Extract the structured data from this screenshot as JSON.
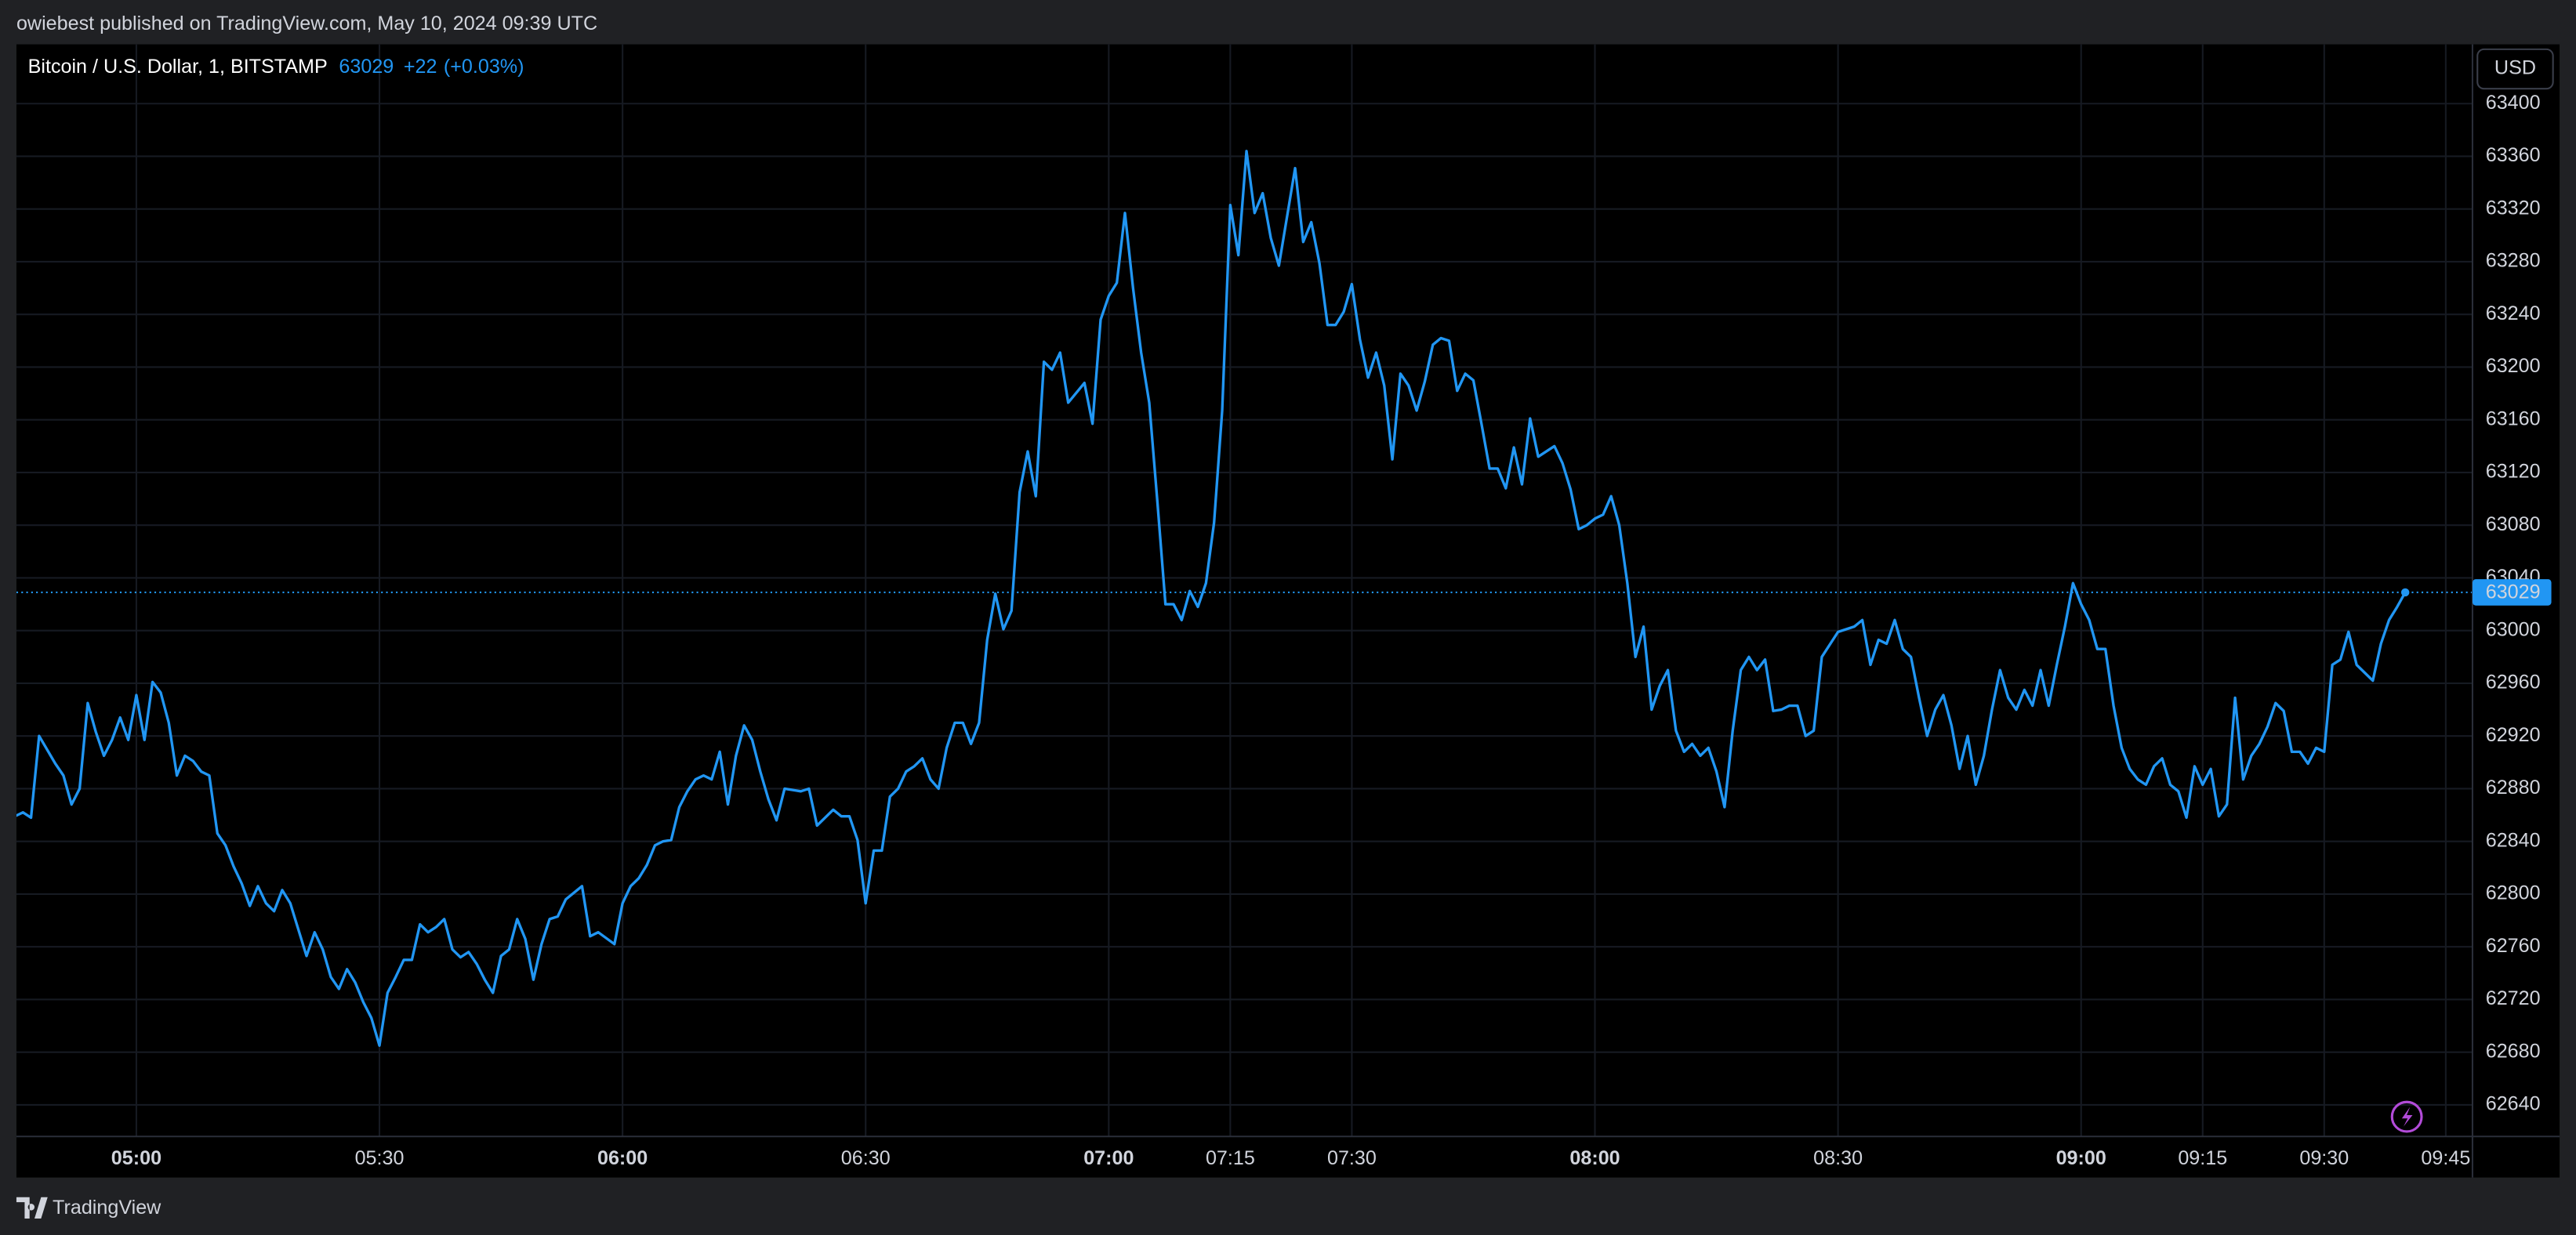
{
  "header": {
    "text": "owiebest published on TradingView.com, May 10, 2024 09:39 UTC"
  },
  "footer": {
    "brand": "TradingView"
  },
  "chart_data": {
    "type": "line",
    "title": "Bitcoin / U.S. Dollar, 1, BITSTAMP",
    "last_price": 63029,
    "change": "+22",
    "change_percent": "(+0.03%)",
    "currency": "USD",
    "grid": true,
    "x": [
      285,
      286,
      287,
      288,
      290,
      291,
      292,
      293,
      294,
      295,
      296,
      297,
      298,
      299,
      300,
      301,
      302,
      303,
      304,
      305,
      306,
      307,
      308,
      309,
      310,
      311,
      312,
      313,
      314,
      315,
      316,
      317,
      318,
      319,
      321,
      322,
      323,
      324,
      325,
      326,
      327,
      328,
      329,
      330,
      331,
      332,
      333,
      334,
      335,
      336,
      337,
      338,
      339,
      340,
      341,
      342,
      343,
      344,
      345,
      346,
      347,
      348,
      349,
      350,
      351,
      352,
      353,
      355,
      356,
      357,
      359,
      360,
      361,
      362,
      363,
      364,
      365,
      366,
      367,
      368,
      369,
      370,
      371,
      372,
      373,
      374,
      375,
      376,
      377,
      378,
      379,
      380,
      382,
      383,
      384,
      385,
      386,
      387,
      388,
      389,
      390,
      391,
      392,
      393,
      394,
      395,
      396,
      397,
      398,
      399,
      400,
      401,
      402,
      403,
      404,
      405,
      406,
      407,
      408,
      409,
      410,
      411,
      412,
      413,
      414,
      415,
      417,
      418,
      419,
      420,
      421,
      422,
      423,
      424,
      425,
      426,
      427,
      428,
      429,
      430,
      431,
      432,
      433,
      434,
      435,
      436,
      437,
      438,
      439,
      440,
      441,
      443,
      444,
      445,
      446,
      447,
      448,
      449,
      450,
      451,
      452,
      453,
      454,
      455,
      456,
      457,
      458,
      459,
      460,
      461,
      462,
      463,
      464,
      465,
      466,
      467,
      468,
      469,
      470,
      471,
      472,
      473,
      474,
      475,
      476,
      477,
      478,
      479,
      480,
      481,
      482,
      483,
      484,
      485,
      486,
      487,
      488,
      489,
      490,
      491,
      492,
      493,
      494,
      495,
      496,
      497,
      498,
      499,
      500,
      501,
      502,
      503,
      504,
      505,
      506,
      507,
      508,
      510,
      511,
      512,
      513,
      514,
      515,
      516,
      517,
      518,
      519,
      520,
      521,
      522,
      523,
      524,
      525,
      526,
      527,
      528,
      529,
      530,
      531,
      532,
      533,
      534,
      535,
      536,
      537,
      538,
      539,
      540,
      541,
      542,
      543,
      544,
      545,
      546,
      547,
      548,
      549,
      550,
      551,
      552,
      553,
      554,
      555,
      556,
      557,
      558,
      559,
      560,
      561,
      562,
      563,
      564,
      565,
      566,
      567,
      568,
      569,
      570,
      571,
      572,
      573,
      574,
      575,
      576,
      577,
      578,
      579,
      580
    ],
    "series": [
      {
        "color": "#2196f3",
        "values": [
          62859,
          62862,
          62858,
          62920,
          62899,
          62890,
          62868,
          62880,
          62945,
          62923,
          62905,
          62917,
          62934,
          62917,
          62951,
          62917,
          62961,
          62953,
          62930,
          62890,
          62905,
          62901,
          62893,
          62890,
          62846,
          62837,
          62821,
          62808,
          62791,
          62806,
          62793,
          62787,
          62803,
          62793,
          62753,
          62771,
          62758,
          62737,
          62728,
          62743,
          62733,
          62718,
          62706,
          62685,
          62725,
          62737,
          62750,
          62750,
          62777,
          62771,
          62775,
          62781,
          62758,
          62752,
          62756,
          62747,
          62735,
          62725,
          62753,
          62758,
          62781,
          62766,
          62735,
          62762,
          62781,
          62783,
          62796,
          62806,
          62768,
          62771,
          62762,
          62793,
          62806,
          62812,
          62822,
          62837,
          62840,
          62841,
          62866,
          62878,
          62887,
          62890,
          62887,
          62908,
          62868,
          62905,
          62928,
          62917,
          62893,
          62872,
          62856,
          62880,
          62878,
          62880,
          62852,
          62858,
          62864,
          62859,
          62859,
          62841,
          62793,
          62833,
          62833,
          62874,
          62880,
          62893,
          62897,
          62903,
          62887,
          62880,
          62911,
          62930,
          62930,
          62914,
          62930,
          62993,
          63028,
          63001,
          63015,
          63105,
          63136,
          63102,
          63204,
          63198,
          63211,
          63173,
          63188,
          63157,
          63236,
          63254,
          63264,
          63317,
          63260,
          63211,
          63173,
          63098,
          63020,
          63020,
          63008,
          63030,
          63018,
          63036,
          63082,
          63167,
          63323,
          63285,
          63364,
          63317,
          63332,
          63298,
          63277,
          63351,
          63295,
          63310,
          63279,
          63232,
          63232,
          63242,
          63263,
          63221,
          63192,
          63211,
          63186,
          63130,
          63195,
          63186,
          63167,
          63189,
          63217,
          63222,
          63220,
          63182,
          63195,
          63190,
          63157,
          63123,
          63123,
          63108,
          63139,
          63111,
          63161,
          63132,
          63136,
          63140,
          63127,
          63107,
          63077,
          63080,
          63085,
          63088,
          63102,
          63080,
          63036,
          62980,
          63003,
          62940,
          62958,
          62970,
          62924,
          62908,
          62914,
          62905,
          62911,
          62893,
          62866,
          62924,
          62970,
          62980,
          62970,
          62978,
          62939,
          62940,
          62943,
          62943,
          62920,
          62924,
          62980,
          62999,
          63001,
          63003,
          63008,
          62974,
          62993,
          62990,
          63008,
          62986,
          62980,
          62949,
          62920,
          62940,
          62951,
          62928,
          62895,
          62920,
          62883,
          62905,
          62940,
          62970,
          62949,
          62940,
          62955,
          62943,
          62970,
          62943,
          62974,
          63003,
          63036,
          63020,
          63008,
          62986,
          62986,
          62943,
          62911,
          62895,
          62887,
          62883,
          62897,
          62903,
          62883,
          62878,
          62858,
          62897,
          62883,
          62895,
          62859,
          62868,
          62949,
          62887,
          62905,
          62914,
          62927,
          62945,
          62939,
          62908,
          62908,
          62899,
          62911,
          62908,
          62974,
          62978,
          62999,
          62974,
          62968,
          62962,
          62990,
          63008,
          63018,
          63029
        ]
      }
    ],
    "xlim": [
      285.2,
      588.3
    ],
    "xticks": [
      {
        "value": 300,
        "label": "05:00"
      },
      {
        "value": 330,
        "label": "05:30"
      },
      {
        "value": 360,
        "label": "06:00"
      },
      {
        "value": 390,
        "label": "06:30"
      },
      {
        "value": 420,
        "label": "07:00"
      },
      {
        "value": 435,
        "label": "07:15"
      },
      {
        "value": 450,
        "label": "07:30"
      },
      {
        "value": 480,
        "label": "08:00"
      },
      {
        "value": 510,
        "label": "08:30"
      },
      {
        "value": 540,
        "label": "09:00"
      },
      {
        "value": 555,
        "label": "09:15"
      },
      {
        "value": 570,
        "label": "09:30"
      },
      {
        "value": 585,
        "label": "09:45"
      }
    ],
    "ylim": [
      62616,
      63445
    ],
    "yticks": [
      62640,
      62680,
      62720,
      62760,
      62800,
      62840,
      62880,
      62920,
      62960,
      63000,
      63040,
      63080,
      63120,
      63160,
      63200,
      63240,
      63280,
      63320,
      63360,
      63400
    ]
  }
}
